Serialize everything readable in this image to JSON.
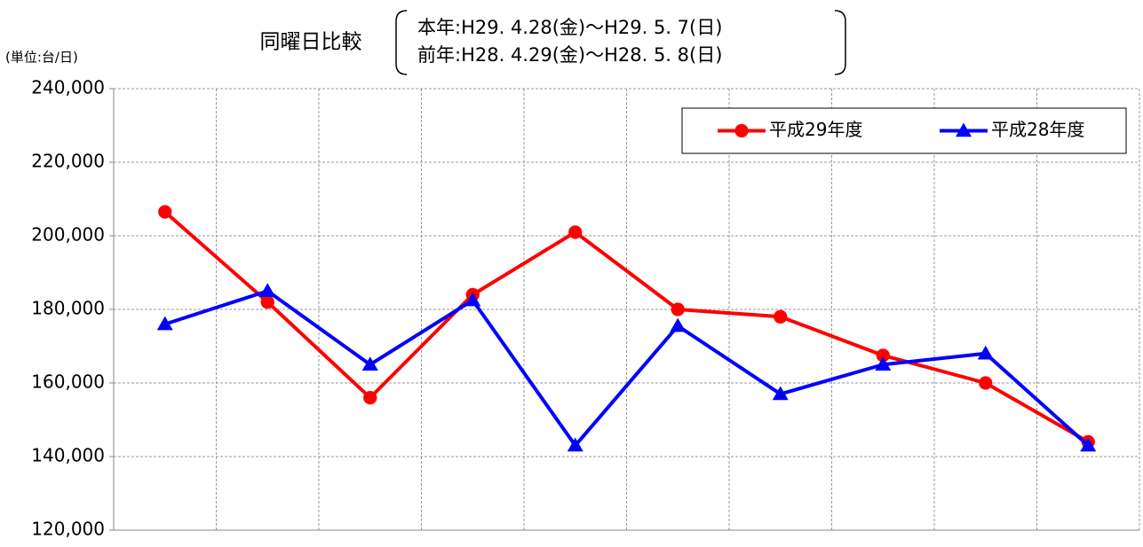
{
  "chart_data": {
    "type": "line",
    "title": "同曜日比較",
    "subtitle": [
      "本年:H29. 4.28(金)～H29. 5. 7(日)",
      "前年:H28. 4.29(金)～H28. 5. 8(日)"
    ],
    "unit_label": "(単位:台/日)",
    "categories": [
      null,
      null,
      null,
      null,
      null,
      null,
      null,
      null,
      null,
      null
    ],
    "series": [
      {
        "name": "平成29年度",
        "color": "#ff0000",
        "marker": "circle",
        "values": [
          206500,
          182000,
          156000,
          184000,
          201000,
          180000,
          178000,
          167500,
          160000,
          144000
        ]
      },
      {
        "name": "平成28年度",
        "color": "#0000ff",
        "marker": "triangle",
        "values": [
          176000,
          185000,
          165000,
          182500,
          143000,
          175500,
          157000,
          165000,
          168000,
          143000
        ]
      }
    ],
    "ylim": [
      120000,
      240000
    ],
    "yticks": [
      {
        "value": 120000,
        "label": "120,000"
      },
      {
        "value": 140000,
        "label": "140,000"
      },
      {
        "value": 160000,
        "label": "160,000"
      },
      {
        "value": 180000,
        "label": "180,000"
      },
      {
        "value": 200000,
        "label": "200,000"
      },
      {
        "value": 220000,
        "label": "220,000"
      },
      {
        "value": 240000,
        "label": "240,000"
      }
    ],
    "grid": true,
    "legend": "upper right"
  }
}
